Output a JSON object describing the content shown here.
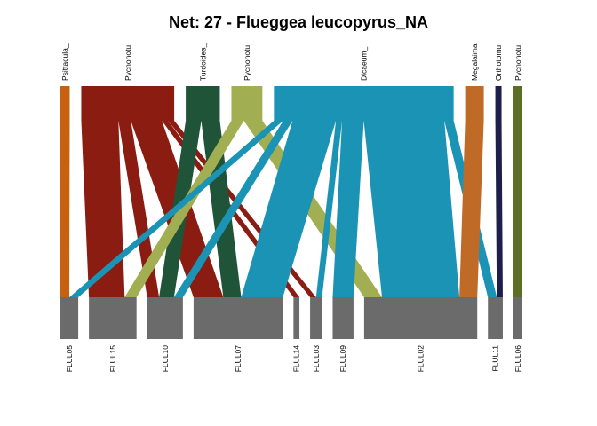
{
  "chart_data": {
    "type": "bipartite",
    "title": "Net: 27 - Flueggea leucopyrus_NA",
    "higher": [
      {
        "label": "Psittacula_",
        "color": "#c7600f"
      },
      {
        "label": "Pycnonotu",
        "color": "#8b1c12"
      },
      {
        "label": "Turdoides_",
        "color": "#1f5438"
      },
      {
        "label": "Pycnonotu",
        "color": "#a2ae52"
      },
      {
        "label": "Dicaeum_",
        "color": "#1a93b5"
      },
      {
        "label": "Megalaima",
        "color": "#c06a28"
      },
      {
        "label": "Orthotomu",
        "color": "#1d1f4a"
      },
      {
        "label": "Pycnonotu",
        "color": "#5c6d26"
      }
    ],
    "lower": [
      {
        "label": "FLUL05"
      },
      {
        "label": "FLUL15"
      },
      {
        "label": "FLUL10"
      },
      {
        "label": "FLUL07"
      },
      {
        "label": "FLUL14"
      },
      {
        "label": "FLUL03"
      },
      {
        "label": "FLUL09"
      },
      {
        "label": "FLUL02"
      },
      {
        "label": "FLUL11"
      },
      {
        "label": "FLUL06"
      }
    ],
    "lower_color": "#6b6b6b",
    "links": [
      {
        "from": 0,
        "to": 0,
        "value": 3
      },
      {
        "from": 1,
        "to": 1,
        "value": 12
      },
      {
        "from": 1,
        "to": 2,
        "value": 4
      },
      {
        "from": 1,
        "to": 3,
        "value": 10
      },
      {
        "from": 1,
        "to": 4,
        "value": 2
      },
      {
        "from": 1,
        "to": 5,
        "value": 2
      },
      {
        "from": 2,
        "to": 2,
        "value": 5
      },
      {
        "from": 2,
        "to": 3,
        "value": 6
      },
      {
        "from": 3,
        "to": 1,
        "value": 4
      },
      {
        "from": 3,
        "to": 7,
        "value": 6
      },
      {
        "from": 4,
        "to": 0,
        "value": 3
      },
      {
        "from": 4,
        "to": 2,
        "value": 3
      },
      {
        "from": 4,
        "to": 3,
        "value": 14
      },
      {
        "from": 4,
        "to": 5,
        "value": 2
      },
      {
        "from": 4,
        "to": 6,
        "value": 7
      },
      {
        "from": 4,
        "to": 7,
        "value": 26
      },
      {
        "from": 4,
        "to": 8,
        "value": 3
      },
      {
        "from": 5,
        "to": 7,
        "value": 6
      },
      {
        "from": 6,
        "to": 8,
        "value": 2
      },
      {
        "from": 7,
        "to": 9,
        "value": 3
      }
    ]
  }
}
